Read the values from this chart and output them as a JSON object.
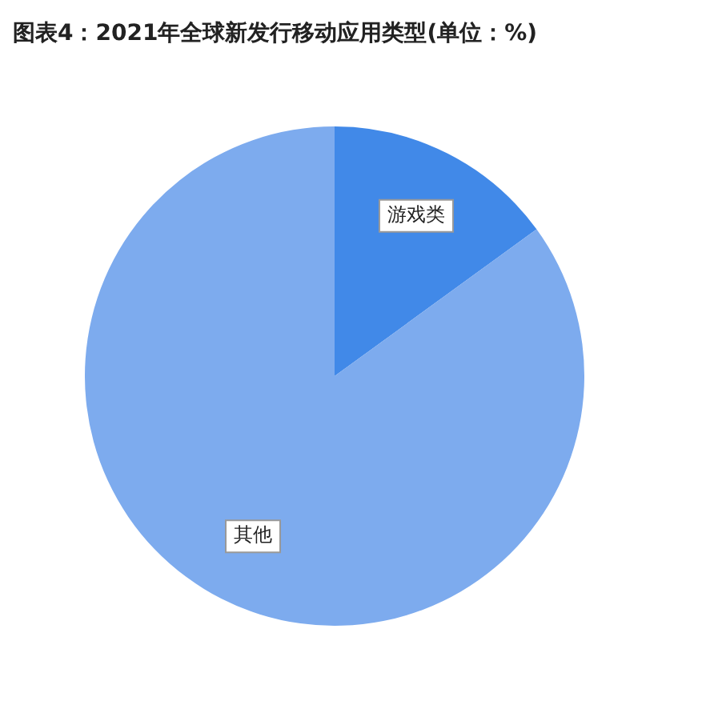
{
  "chart_data": {
    "type": "pie",
    "title": "图表4：2021年全球新发行移动应用类型(单位：%)",
    "categories": [
      "游戏类",
      "其他"
    ],
    "values": [
      15,
      85
    ],
    "colors": [
      "#4189e8",
      "#7dabee"
    ],
    "legend": false
  }
}
